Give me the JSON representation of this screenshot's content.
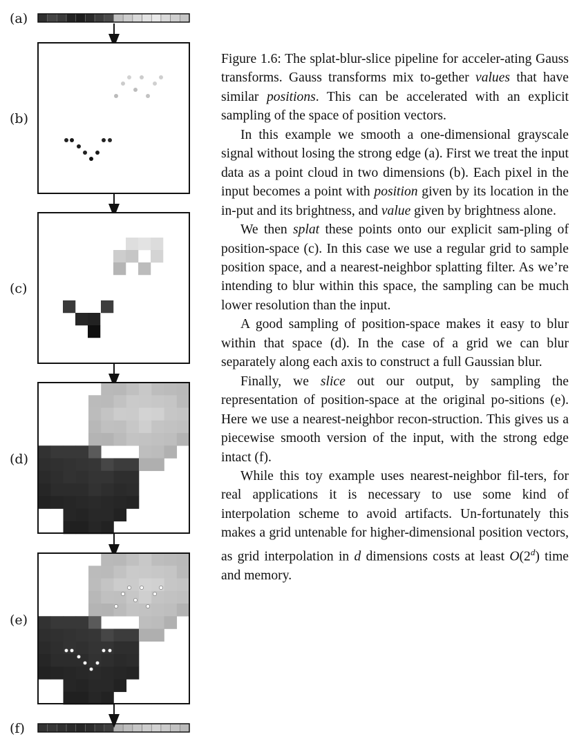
{
  "figure": {
    "panel_labels": [
      "(a)",
      "(b)",
      "(c)",
      "(d)",
      "(e)",
      "(f)"
    ],
    "input_signal": [
      "#2f2f2f",
      "#444",
      "#3a3a3a",
      "#222",
      "#1c1c1c",
      "#2a2a2a",
      "#3c3c3c",
      "#4a4a4a",
      "#c0c0c0",
      "#cdcdcd",
      "#d9d9d9",
      "#e3e3e3",
      "#e9e9e9",
      "#dadada",
      "#cfcfcf",
      "#c5c5c5"
    ],
    "output_signal": [
      "#333",
      "#373737",
      "#303030",
      "#2a2a2a",
      "#262626",
      "#2c2c2c",
      "#363636",
      "#3e3e3e",
      "#b3b3b3",
      "#bdbdbd",
      "#c6c6c6",
      "#cdcdcd",
      "#d2d2d2",
      "#cbcbcb",
      "#c2c2c2",
      "#bababa"
    ]
  },
  "caption": {
    "paragraphs": [
      [
        {
          "t": "Figure 1.6: The splat-blur-slice pipeline for acceler-ating Gauss transforms. Gauss transforms mix to-gether "
        },
        {
          "t": "values",
          "i": true
        },
        {
          "t": " that have similar "
        },
        {
          "t": "positions",
          "i": true
        },
        {
          "t": ". This can be accelerated with an explicit sampling of the space of position vectors."
        }
      ],
      [
        {
          "t": "In this example we smooth a one-dimensional grayscale signal without losing the strong edge (a). First we treat the input data as a point cloud in two dimensions (b). Each pixel in the input becomes a point with "
        },
        {
          "t": "position",
          "i": true
        },
        {
          "t": " given by its location in the in-put and its brightness, and "
        },
        {
          "t": "value",
          "i": true
        },
        {
          "t": " given by brightness alone."
        }
      ],
      [
        {
          "t": "We then "
        },
        {
          "t": "splat",
          "i": true
        },
        {
          "t": " these points onto our explicit sam-pling of position-space (c). In this case we use a regular grid to sample position space, and a nearest-neighbor splatting filter. As we’re intending to blur within this space, the sampling can be much lower resolution than the input."
        }
      ],
      [
        {
          "t": "A good sampling of position-space makes it easy to blur within that space (d). In the case of a grid we can blur separately along each axis to construct a full Gaussian blur."
        }
      ],
      [
        {
          "t": "Finally, we "
        },
        {
          "t": "slice",
          "i": true
        },
        {
          "t": " out our output, by sampling the representation of position-space at the original po-sitions (e). Here we use a nearest-neighbor recon-struction. This gives us a piecewise smooth version of the input, with the strong edge intact (f)."
        }
      ],
      [
        {
          "t": "While this toy example uses nearest-neighbor fil-ters, for real applications it is necessary to use some kind of interpolation scheme to avoid artifacts. Un-fortunately this makes a grid untenable for higher-dimensional position vectors, as grid interpolation in "
        },
        {
          "t": "d",
          "i": true
        },
        {
          "t": " dimensions costs at least "
        },
        {
          "t": "O",
          "i": true
        },
        {
          "t": "(2"
        },
        {
          "t": "d",
          "i": true,
          "sup": true
        },
        {
          "t": ") time and memory."
        }
      ]
    ]
  }
}
